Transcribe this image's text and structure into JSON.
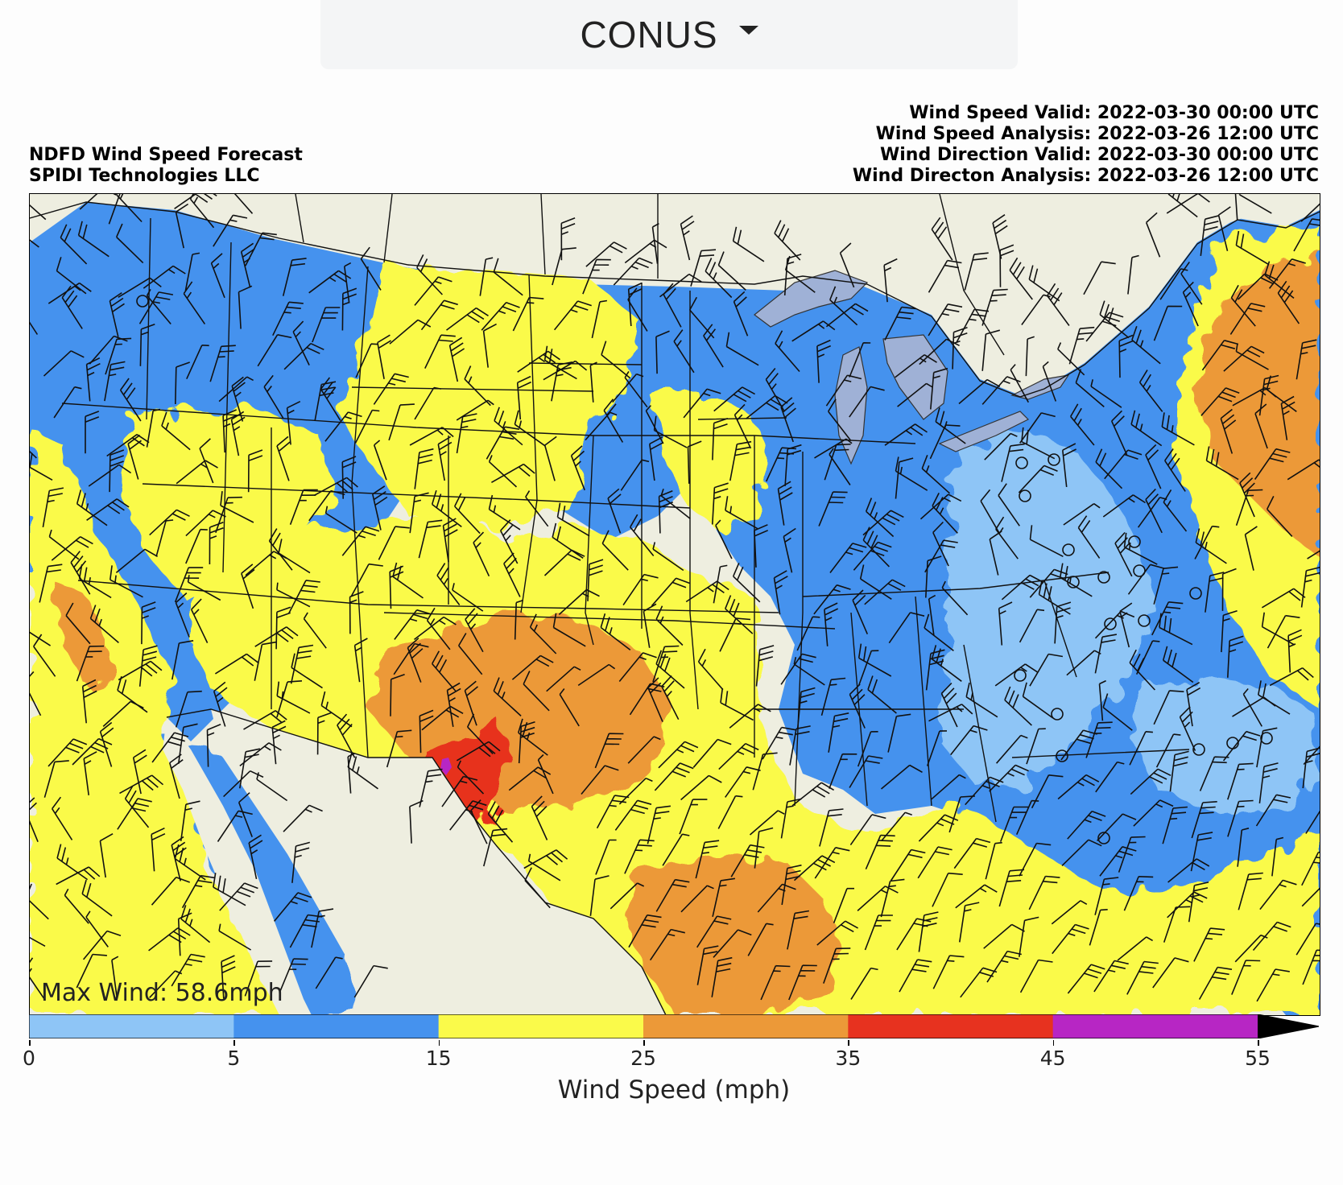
{
  "dropdown": {
    "selected": "CONUS",
    "caret": "caret-down-icon"
  },
  "title": {
    "line1": "NDFD Wind Speed Forecast",
    "line2": "SPIDI Technologies LLC"
  },
  "meta": {
    "line1": "Wind Speed Valid: 2022-03-30 00:00 UTC",
    "line2": "Wind Speed Analysis: 2022-03-26 12:00 UTC",
    "line3": "Wind Direction Valid: 2022-03-30 00:00 UTC",
    "line4": "Wind Directon Analysis: 2022-03-26 12:00 UTC"
  },
  "map": {
    "max_wind": "Max Wind: 58.6mph"
  },
  "colorbar": {
    "label": "Wind Speed (mph)",
    "ticks": [
      "0",
      "5",
      "15",
      "25",
      "35",
      "45",
      "55"
    ],
    "segments": [
      {
        "from": 0,
        "to": 5,
        "color": "#8ec5f6"
      },
      {
        "from": 5,
        "to": 15,
        "color": "#4592ee"
      },
      {
        "from": 15,
        "to": 25,
        "color": "#fafa4a"
      },
      {
        "from": 25,
        "to": 35,
        "color": "#ec9938"
      },
      {
        "from": 35,
        "to": 45,
        "color": "#e7321f"
      },
      {
        "from": 45,
        "to": 55,
        "color": "#b726c4"
      }
    ],
    "extend_color": "#000000",
    "land_color": "#eeeee0",
    "water_color": "#9fb1d6"
  }
}
